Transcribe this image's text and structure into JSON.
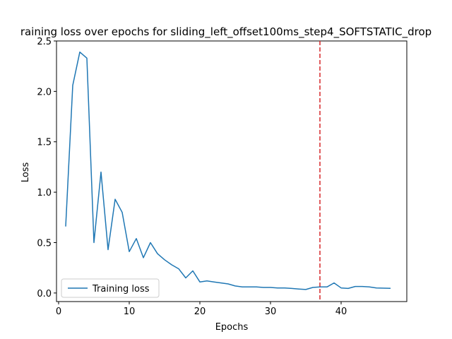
{
  "chart_data": {
    "type": "line",
    "title": "raining loss over epochs for sliding_left_offset100ms_step4_SOFTSTATIC_drop",
    "xlabel": "Epochs",
    "ylabel": "Loss",
    "xlim": [
      -0.3,
      49.3
    ],
    "ylim": [
      -0.085,
      2.5
    ],
    "xticks": [
      0,
      10,
      20,
      30,
      40
    ],
    "yticks": [
      0.0,
      0.5,
      1.0,
      1.5,
      2.0,
      2.5
    ],
    "ytick_labels": [
      "0.0",
      "0.5",
      "1.0",
      "1.5",
      "2.0",
      "2.5"
    ],
    "legend": {
      "placement": "lower-left",
      "entries": [
        "Training loss"
      ]
    },
    "series": [
      {
        "name": "Training loss",
        "color": "#1f77b4",
        "x": [
          1,
          2,
          3,
          4,
          5,
          6,
          7,
          8,
          9,
          10,
          11,
          12,
          13,
          14,
          15,
          16,
          17,
          18,
          19,
          20,
          21,
          22,
          23,
          24,
          25,
          26,
          27,
          28,
          29,
          30,
          31,
          32,
          33,
          34,
          35,
          36,
          37,
          38,
          39,
          40,
          41,
          42,
          43,
          44,
          45,
          46,
          47
        ],
        "y": [
          0.66,
          2.06,
          2.39,
          2.33,
          0.5,
          1.2,
          0.43,
          0.93,
          0.8,
          0.41,
          0.54,
          0.35,
          0.5,
          0.39,
          0.33,
          0.28,
          0.24,
          0.15,
          0.22,
          0.11,
          0.12,
          0.11,
          0.1,
          0.09,
          0.07,
          0.06,
          0.06,
          0.06,
          0.055,
          0.055,
          0.05,
          0.05,
          0.045,
          0.04,
          0.035,
          0.055,
          0.06,
          0.06,
          0.1,
          0.05,
          0.045,
          0.065,
          0.065,
          0.06,
          0.05,
          0.048,
          0.047
        ]
      }
    ],
    "vline": {
      "x": 37,
      "color": "#d62728",
      "style": "dashed"
    }
  }
}
